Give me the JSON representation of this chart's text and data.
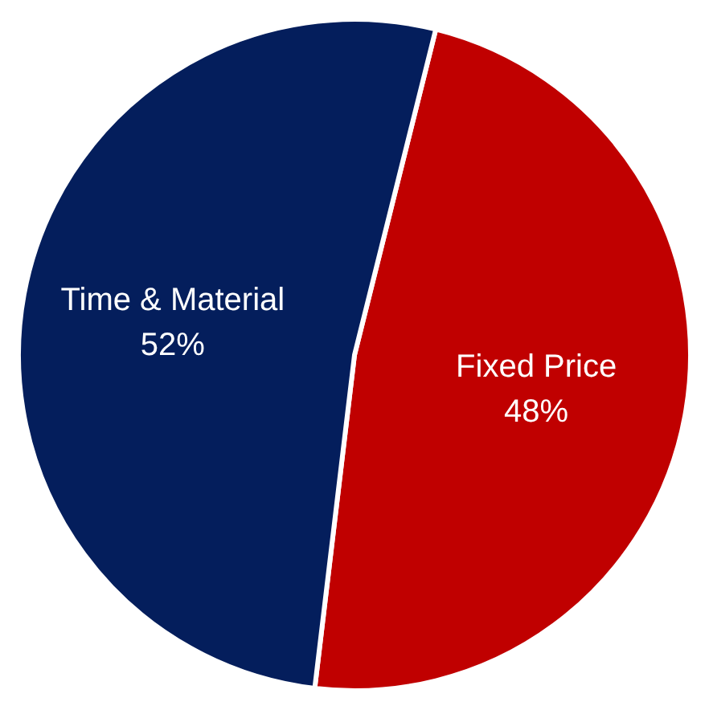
{
  "chart_data": {
    "type": "pie",
    "categories": [
      "Fixed Price",
      "Time & Material"
    ],
    "values": [
      48,
      52
    ],
    "colors": [
      "#c00000",
      "#041e5c"
    ],
    "value_labels": [
      "48%",
      "52%"
    ],
    "legend": false
  }
}
